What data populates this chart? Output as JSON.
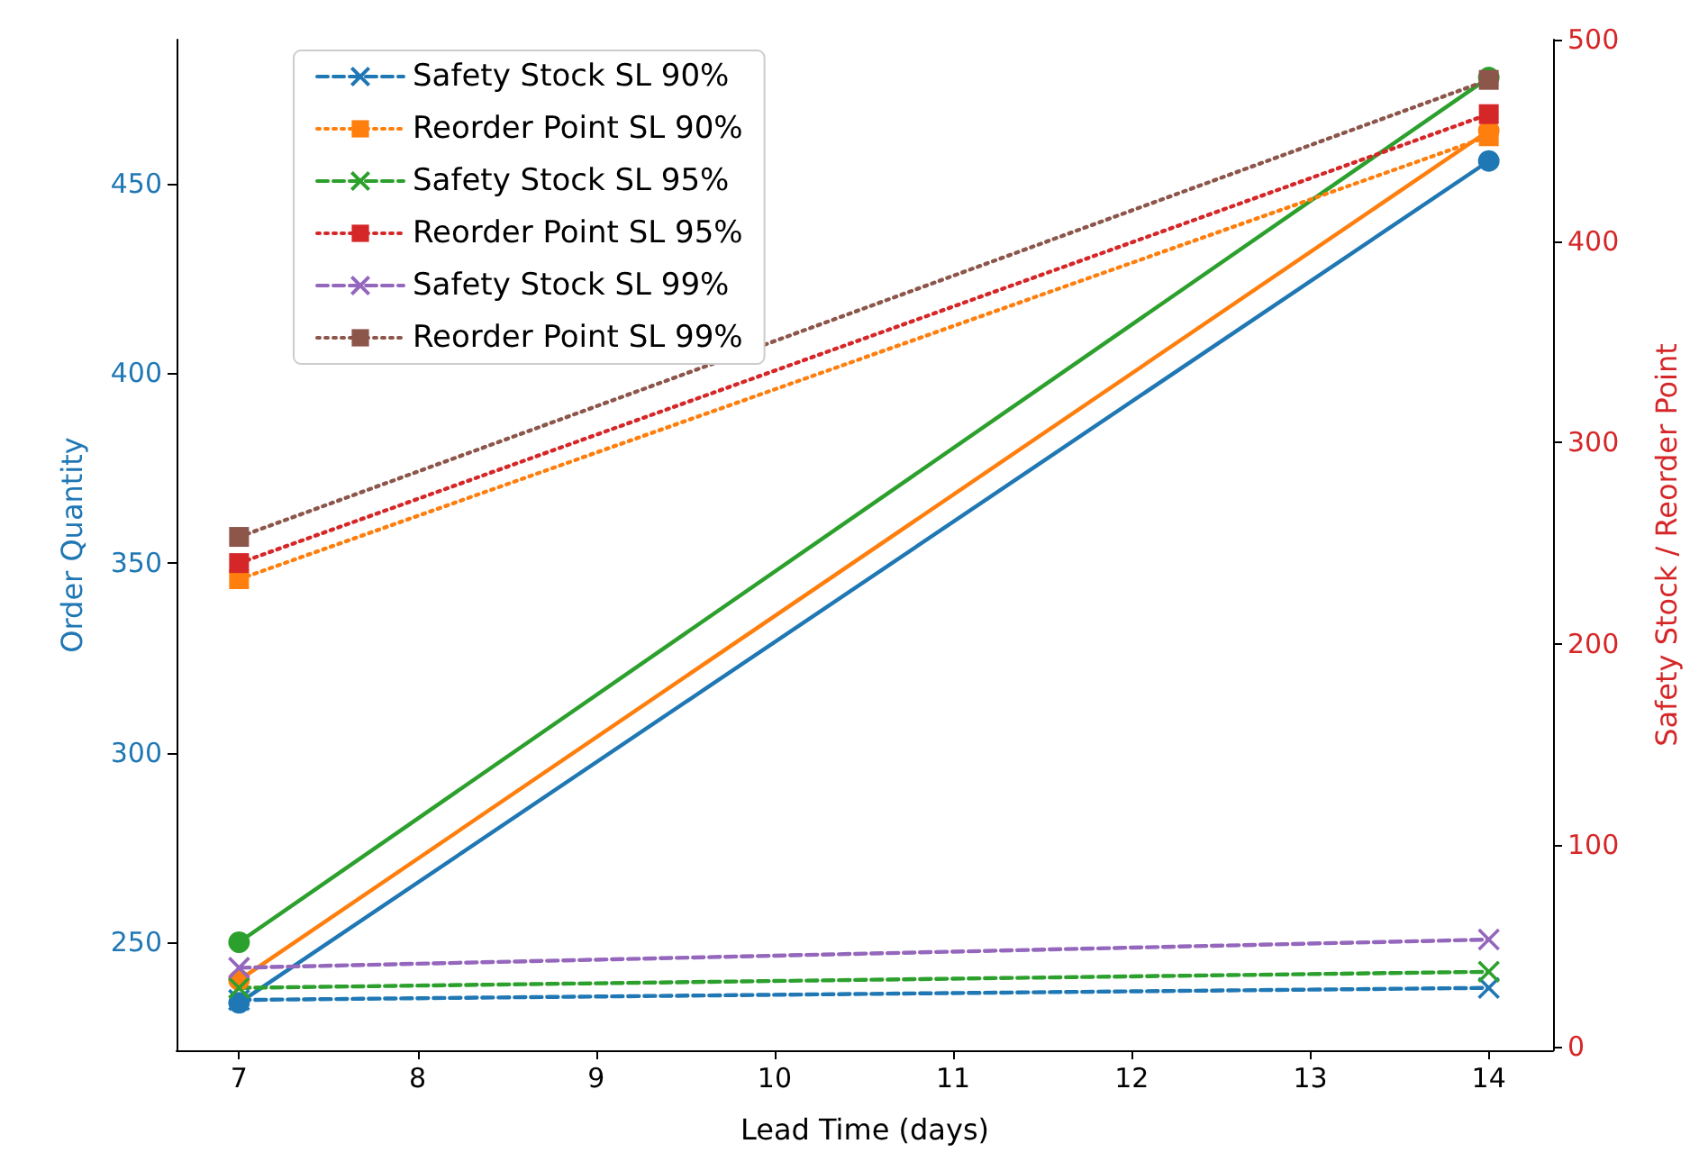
{
  "chart_data": {
    "type": "line",
    "xlabel": "Lead Time (days)",
    "ylabel": "Order Quantity",
    "y2label": "Safety Stock / Reorder Point",
    "x": [
      7,
      14
    ],
    "xlim": [
      6.65,
      14.36
    ],
    "xticks": [
      7,
      8,
      9,
      10,
      11,
      12,
      13,
      14
    ],
    "ylim": [
      221.5,
      488
    ],
    "yticks": [
      250,
      300,
      350,
      400,
      450
    ],
    "y2lim": [
      -2,
      500
    ],
    "y2ticks": [
      0,
      100,
      200,
      300,
      400,
      500
    ],
    "grid": false,
    "legend": "top left",
    "series": [
      {
        "color": "#1f77b4",
        "values": [
          234,
          456
        ],
        "marker": "circle",
        "line_style": "solid"
      },
      {
        "color": "#ff7f0e",
        "values": [
          240,
          464
        ],
        "marker": "circle",
        "line_style": "solid"
      },
      {
        "color": "#2ca02c",
        "values": [
          250,
          478
        ],
        "marker": "circle",
        "line_style": "solid"
      },
      {
        "name": "Safety Stock SL 90%",
        "color": "#1f77b4",
        "values": [
          23,
          29
        ],
        "axis": "y2",
        "marker": "cross",
        "line_style": "dashed"
      },
      {
        "name": "Reorder Point SL 90%",
        "color": "#ff7f0e",
        "values": [
          232,
          452
        ],
        "axis": "y2",
        "marker": "square",
        "line_style": "dotted"
      },
      {
        "name": "Safety Stock SL 95%",
        "color": "#2ca02c",
        "values": [
          29,
          37
        ],
        "axis": "y2",
        "marker": "cross",
        "line_style": "dashed"
      },
      {
        "name": "Reorder Point SL 95%",
        "color": "#d62728",
        "values": [
          240,
          463
        ],
        "axis": "y2",
        "marker": "square",
        "line_style": "dotted"
      },
      {
        "name": "Safety Stock SL 99%",
        "color": "#9467bd",
        "values": [
          39,
          53
        ],
        "axis": "y2",
        "marker": "cross",
        "line_style": "dashed"
      },
      {
        "name": "Reorder Point SL 99%",
        "color": "#8c564b",
        "values": [
          253,
          480
        ],
        "axis": "y2",
        "marker": "square",
        "line_style": "dotted"
      }
    ]
  }
}
